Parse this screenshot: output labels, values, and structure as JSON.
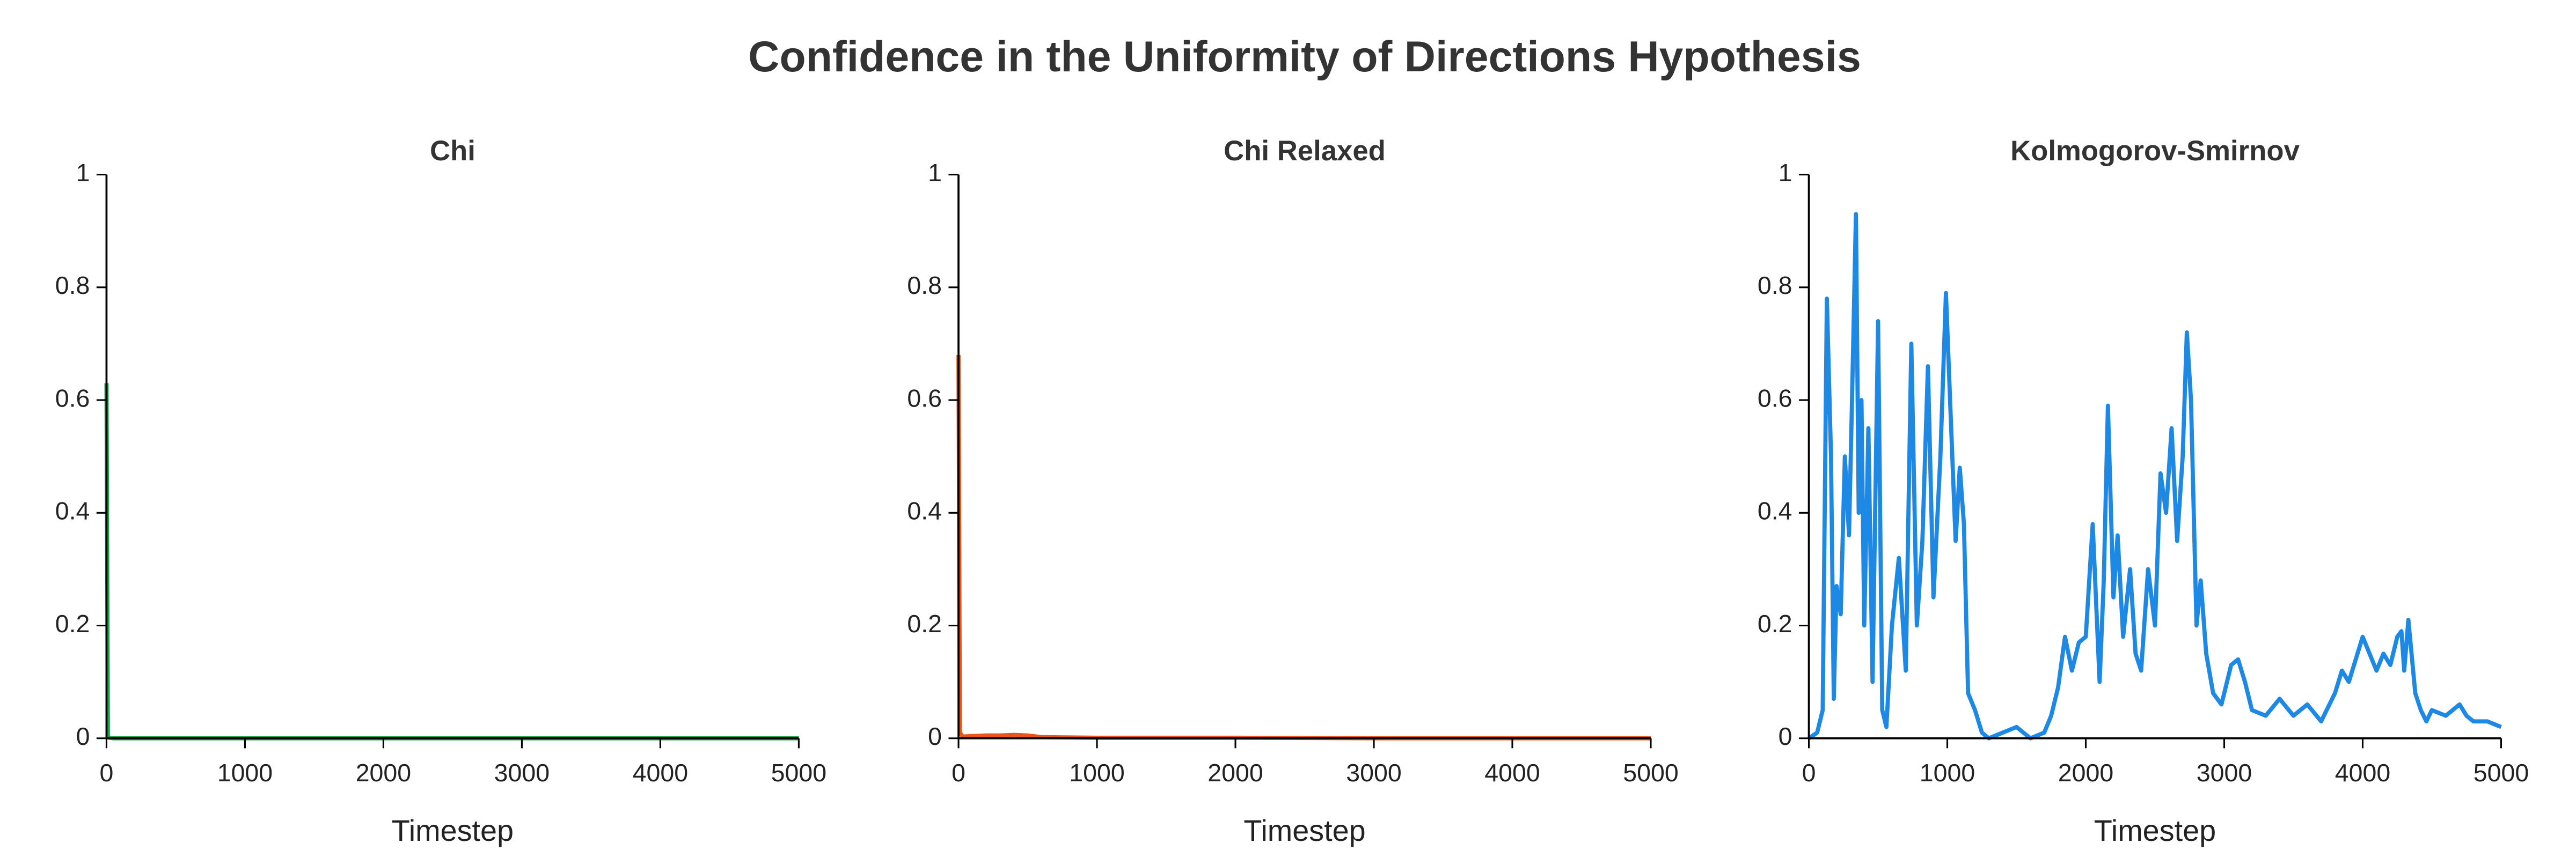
{
  "title": "Confidence in the Uniformity of Directions Hypothesis",
  "chart_data": [
    {
      "type": "line",
      "title": "Chi",
      "x_label": "Timestep",
      "x": [
        0,
        10,
        20,
        50,
        100,
        500,
        1000,
        2000,
        3000,
        4000,
        5000
      ],
      "series": [
        {
          "color": "#1aa14a",
          "values": [
            0.63,
            0.002,
            0.001,
            0,
            0,
            0,
            0,
            0,
            0,
            0,
            0
          ]
        }
      ],
      "xlim": [
        0,
        5000
      ],
      "ylim": [
        0,
        1
      ],
      "xticks": [
        0,
        1000,
        2000,
        3000,
        4000,
        5000
      ],
      "yticks": [
        0,
        0.2,
        0.4,
        0.6,
        0.8,
        1
      ]
    },
    {
      "type": "line",
      "title": "Chi Relaxed",
      "x_label": "Timestep",
      "x": [
        0,
        10,
        30,
        100,
        200,
        300,
        400,
        500,
        600,
        1000,
        2000,
        3000,
        4000,
        5000
      ],
      "series": [
        {
          "color": "#e8561c",
          "values": [
            0.68,
            0.01,
            0.003,
            0.004,
            0.005,
            0.005,
            0.006,
            0.005,
            0.002,
            0.001,
            0.001,
            0,
            0,
            0
          ]
        }
      ],
      "xlim": [
        0,
        5000
      ],
      "ylim": [
        0,
        1
      ],
      "xticks": [
        0,
        1000,
        2000,
        3000,
        4000,
        5000
      ],
      "yticks": [
        0,
        0.2,
        0.4,
        0.6,
        0.8,
        1
      ]
    },
    {
      "type": "line",
      "title": "Kolmogorov-Smirnov",
      "x_label": "Timestep",
      "x": [
        0,
        60,
        100,
        130,
        160,
        180,
        200,
        230,
        260,
        290,
        310,
        340,
        360,
        380,
        400,
        430,
        460,
        500,
        530,
        560,
        600,
        650,
        700,
        740,
        780,
        820,
        860,
        900,
        950,
        990,
        1020,
        1060,
        1090,
        1120,
        1150,
        1200,
        1250,
        1300,
        1400,
        1500,
        1600,
        1700,
        1750,
        1800,
        1850,
        1900,
        1950,
        2000,
        2050,
        2100,
        2130,
        2160,
        2200,
        2230,
        2270,
        2320,
        2360,
        2400,
        2450,
        2500,
        2540,
        2580,
        2620,
        2660,
        2700,
        2730,
        2760,
        2800,
        2830,
        2870,
        2920,
        2980,
        3050,
        3100,
        3150,
        3200,
        3300,
        3400,
        3500,
        3600,
        3700,
        3800,
        3850,
        3900,
        3950,
        4000,
        4050,
        4100,
        4150,
        4200,
        4250,
        4280,
        4300,
        4330,
        4380,
        4420,
        4460,
        4500,
        4600,
        4700,
        4750,
        4800,
        4900,
        5000
      ],
      "series": [
        {
          "color": "#1e88e5",
          "values": [
            0,
            0.01,
            0.05,
            0.78,
            0.5,
            0.07,
            0.27,
            0.22,
            0.5,
            0.36,
            0.58,
            0.93,
            0.4,
            0.6,
            0.2,
            0.55,
            0.1,
            0.74,
            0.05,
            0.02,
            0.2,
            0.32,
            0.12,
            0.7,
            0.2,
            0.35,
            0.66,
            0.25,
            0.5,
            0.79,
            0.6,
            0.35,
            0.48,
            0.38,
            0.08,
            0.05,
            0.01,
            0,
            0.01,
            0.02,
            0,
            0.01,
            0.04,
            0.09,
            0.18,
            0.12,
            0.17,
            0.18,
            0.38,
            0.1,
            0.28,
            0.59,
            0.25,
            0.36,
            0.18,
            0.3,
            0.15,
            0.12,
            0.3,
            0.2,
            0.47,
            0.4,
            0.55,
            0.35,
            0.5,
            0.72,
            0.6,
            0.2,
            0.28,
            0.15,
            0.08,
            0.06,
            0.13,
            0.14,
            0.1,
            0.05,
            0.04,
            0.07,
            0.04,
            0.06,
            0.03,
            0.08,
            0.12,
            0.1,
            0.14,
            0.18,
            0.15,
            0.12,
            0.15,
            0.13,
            0.18,
            0.19,
            0.12,
            0.21,
            0.08,
            0.05,
            0.03,
            0.05,
            0.04,
            0.06,
            0.04,
            0.03,
            0.03,
            0.02
          ]
        }
      ],
      "xlim": [
        0,
        5000
      ],
      "ylim": [
        0,
        1
      ],
      "xticks": [
        0,
        1000,
        2000,
        3000,
        4000,
        5000
      ],
      "yticks": [
        0,
        0.2,
        0.4,
        0.6,
        0.8,
        1
      ]
    }
  ]
}
